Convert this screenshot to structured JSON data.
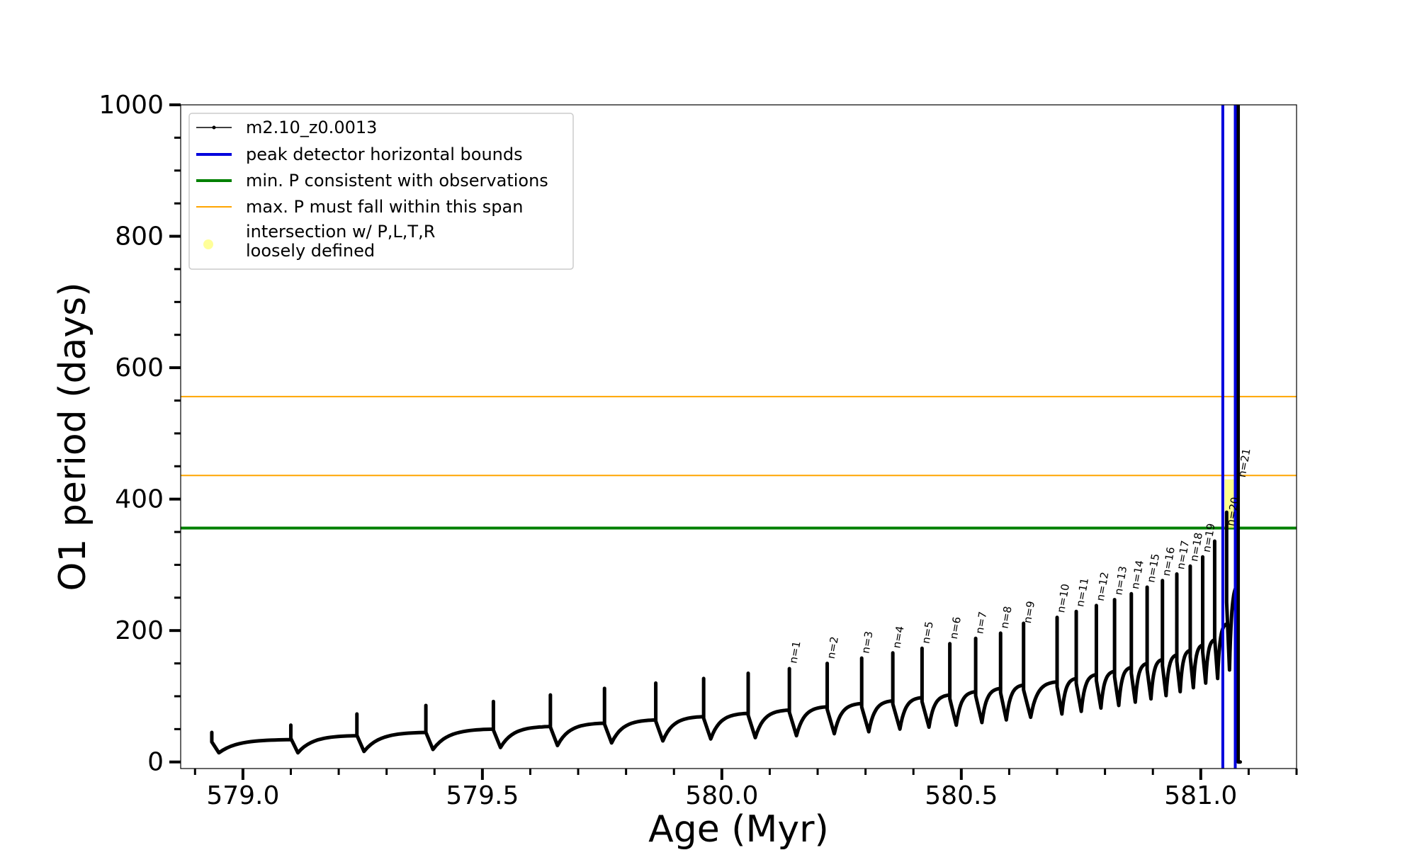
{
  "chart_data": {
    "type": "line",
    "xlabel": "Age (Myr)",
    "ylabel": "O1 period (days)",
    "xlim": [
      578.87,
      581.2
    ],
    "ylim": [
      -10,
      1000
    ],
    "xticks": [
      579.0,
      579.5,
      580.0,
      580.5,
      581.0
    ],
    "xtick_labels": [
      "579.0",
      "579.5",
      "580.0",
      "580.5",
      "581.0"
    ],
    "yticks": [
      0,
      200,
      400,
      600,
      800,
      1000
    ],
    "ytick_labels": [
      "0",
      "200",
      "400",
      "600",
      "800",
      "1000"
    ],
    "grid": false,
    "legend_position": "upper left",
    "legend": [
      {
        "label": "m2.10_z0.0013",
        "style": "line-marker",
        "color": "#000000"
      },
      {
        "label": "peak detector horizontal bounds",
        "style": "thick-line",
        "color": "#0000dd"
      },
      {
        "label": "min. P consistent with observations",
        "style": "thick-line",
        "color": "#008000"
      },
      {
        "label": "max. P must fall within this span",
        "style": "thin-line",
        "color": "#ffa500"
      },
      {
        "label": "intersection w/ P,L,T,R",
        "label2": "loosely defined",
        "style": "dot",
        "color": "#ffff99"
      }
    ],
    "horizontal_lines": [
      {
        "y": 556,
        "color": "#ffa500",
        "role": "max P span upper"
      },
      {
        "y": 436,
        "color": "#ffa500",
        "role": "max P span lower"
      },
      {
        "y": 356,
        "color": "#008000",
        "role": "min P"
      }
    ],
    "vertical_lines": [
      {
        "x": 581.046,
        "color": "#0000dd"
      },
      {
        "x": 581.072,
        "color": "#0000dd"
      }
    ],
    "highlight_region": {
      "x": [
        581.05,
        581.07
      ],
      "y": [
        356,
        430
      ],
      "color": "#ffff66"
    },
    "series": [
      {
        "color": "#000000",
        "segments": [
          {
            "t0": 578.935,
            "t1": 579.1,
            "low": 14,
            "high": 34,
            "spike": 45
          },
          {
            "t0": 579.1,
            "t1": 579.238,
            "low": 14,
            "high": 40,
            "spike": 56
          },
          {
            "t0": 579.238,
            "t1": 579.382,
            "low": 16,
            "high": 45,
            "spike": 73
          },
          {
            "t0": 579.382,
            "t1": 579.523,
            "low": 19,
            "high": 50,
            "spike": 86
          },
          {
            "t0": 579.523,
            "t1": 579.642,
            "low": 22,
            "high": 54,
            "spike": 92
          },
          {
            "t0": 579.642,
            "t1": 579.755,
            "low": 25,
            "high": 59,
            "spike": 102
          },
          {
            "t0": 579.755,
            "t1": 579.862,
            "low": 29,
            "high": 64,
            "spike": 112
          },
          {
            "t0": 579.862,
            "t1": 579.962,
            "low": 32,
            "high": 69,
            "spike": 120
          },
          {
            "t0": 579.962,
            "t1": 580.055,
            "low": 35,
            "high": 74,
            "spike": 127
          },
          {
            "t0": 580.055,
            "t1": 580.141,
            "low": 37,
            "high": 79,
            "spike": 135
          },
          {
            "t0": 580.141,
            "t1": 580.22,
            "low": 40,
            "high": 84,
            "spike": 142
          },
          {
            "t0": 580.22,
            "t1": 580.292,
            "low": 43,
            "high": 89,
            "spike": 150
          },
          {
            "t0": 580.292,
            "t1": 580.357,
            "low": 46,
            "high": 93,
            "spike": 158
          },
          {
            "t0": 580.357,
            "t1": 580.418,
            "low": 50,
            "high": 98,
            "spike": 166
          },
          {
            "t0": 580.418,
            "t1": 580.476,
            "low": 53,
            "high": 102,
            "spike": 173
          },
          {
            "t0": 580.476,
            "t1": 580.53,
            "low": 56,
            "high": 107,
            "spike": 180
          },
          {
            "t0": 580.53,
            "t1": 580.582,
            "low": 60,
            "high": 112,
            "spike": 188
          },
          {
            "t0": 580.582,
            "t1": 580.63,
            "low": 64,
            "high": 117,
            "spike": 196
          },
          {
            "t0": 580.63,
            "t1": 580.7,
            "low": 68,
            "high": 122,
            "spike": 211
          },
          {
            "t0": 580.7,
            "t1": 580.74,
            "low": 73,
            "high": 127,
            "spike": 220
          },
          {
            "t0": 580.74,
            "t1": 580.782,
            "low": 77,
            "high": 133,
            "spike": 229
          },
          {
            "t0": 580.782,
            "t1": 580.82,
            "low": 82,
            "high": 138,
            "spike": 238
          },
          {
            "t0": 580.82,
            "t1": 580.855,
            "low": 86,
            "high": 144,
            "spike": 247
          },
          {
            "t0": 580.855,
            "t1": 580.888,
            "low": 91,
            "high": 150,
            "spike": 256
          },
          {
            "t0": 580.888,
            "t1": 580.92,
            "low": 96,
            "high": 156,
            "spike": 266
          },
          {
            "t0": 580.92,
            "t1": 580.95,
            "low": 101,
            "high": 163,
            "spike": 276
          },
          {
            "t0": 580.95,
            "t1": 580.978,
            "low": 107,
            "high": 170,
            "spike": 286
          },
          {
            "t0": 580.978,
            "t1": 581.004,
            "low": 113,
            "high": 178,
            "spike": 298
          },
          {
            "t0": 581.004,
            "t1": 581.029,
            "low": 120,
            "high": 186,
            "spike": 312
          },
          {
            "t0": 581.029,
            "t1": 581.054,
            "low": 127,
            "high": 210,
            "spike": 336
          },
          {
            "t0": 581.054,
            "t1": 581.078,
            "low": 140,
            "high": 270,
            "spike": 380
          },
          {
            "t0": 581.078,
            "t1": 581.092,
            "low": 0,
            "high": 0,
            "spike": 1000
          }
        ]
      }
    ],
    "pulse_labels": [
      {
        "text": "n=1",
        "x": 580.141,
        "y": 145
      },
      {
        "text": "n=2",
        "x": 580.22,
        "y": 152
      },
      {
        "text": "n=3",
        "x": 580.292,
        "y": 160
      },
      {
        "text": "n=4",
        "x": 580.357,
        "y": 168
      },
      {
        "text": "n=5",
        "x": 580.418,
        "y": 175
      },
      {
        "text": "n=6",
        "x": 580.476,
        "y": 182
      },
      {
        "text": "n=7",
        "x": 580.53,
        "y": 190
      },
      {
        "text": "n=8",
        "x": 580.582,
        "y": 198
      },
      {
        "text": "n=9",
        "x": 580.63,
        "y": 206
      },
      {
        "text": "n=10",
        "x": 580.7,
        "y": 222
      },
      {
        "text": "n=11",
        "x": 580.74,
        "y": 231
      },
      {
        "text": "n=12",
        "x": 580.782,
        "y": 240
      },
      {
        "text": "n=13",
        "x": 580.82,
        "y": 249
      },
      {
        "text": "n=14",
        "x": 580.855,
        "y": 258
      },
      {
        "text": "n=15",
        "x": 580.888,
        "y": 268
      },
      {
        "text": "n=16",
        "x": 580.92,
        "y": 278
      },
      {
        "text": "n=17",
        "x": 580.95,
        "y": 288
      },
      {
        "text": "n=18",
        "x": 580.978,
        "y": 300
      },
      {
        "text": "n=19",
        "x": 581.004,
        "y": 314
      },
      {
        "text": "n=20",
        "x": 581.054,
        "y": 354
      },
      {
        "text": "n=21",
        "x": 581.078,
        "y": 428
      }
    ]
  }
}
